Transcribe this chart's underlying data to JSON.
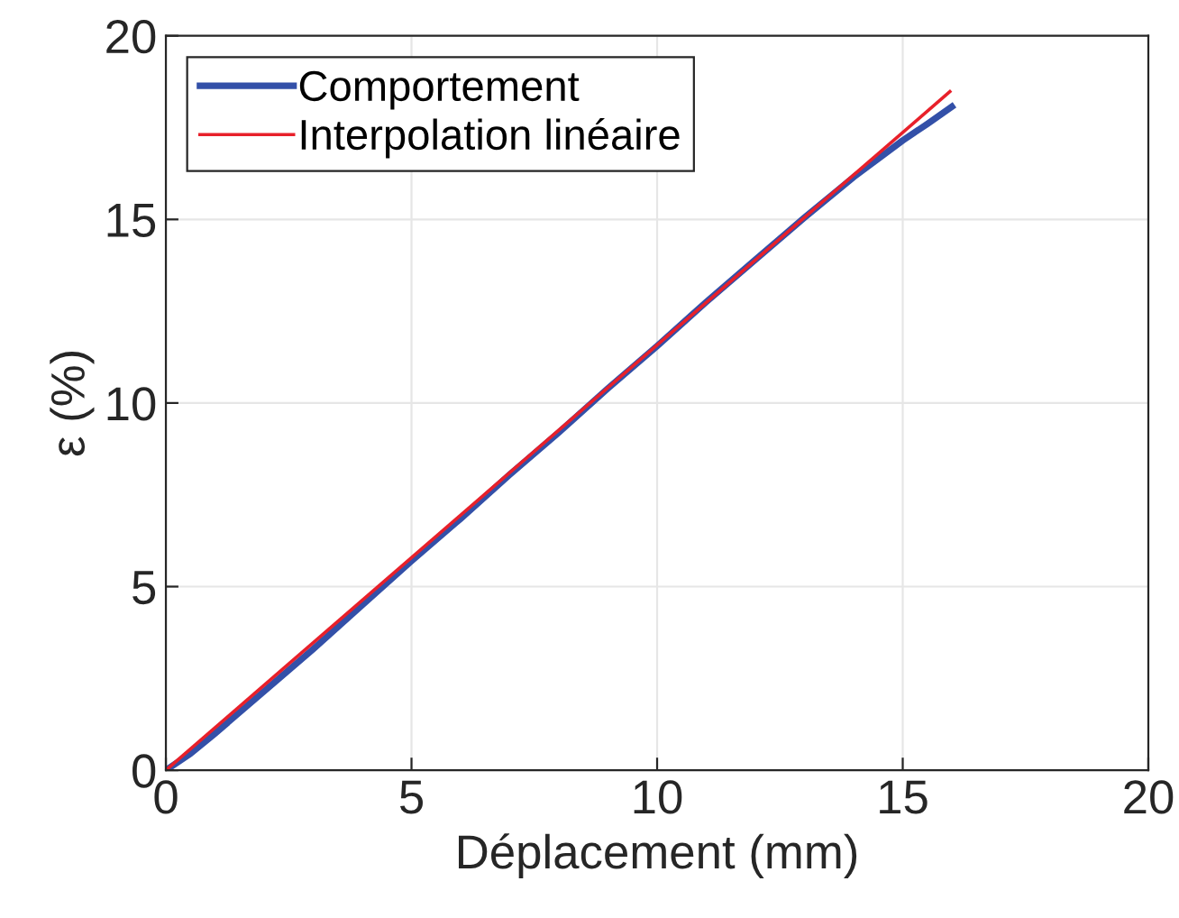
{
  "chart_data": {
    "type": "line",
    "xlabel": "Déplacement (mm)",
    "ylabel": "ε (%)",
    "xlim": [
      0,
      20
    ],
    "xticks": [
      0,
      5,
      10,
      15,
      20
    ],
    "ylim": [
      0,
      20
    ],
    "yticks": [
      0,
      5,
      10,
      15,
      20
    ],
    "grid": true,
    "legend": "top left",
    "series": [
      {
        "name": "Comportement",
        "color": "#3350a8",
        "x": [
          0,
          0.5,
          1,
          2,
          3,
          4,
          5,
          6,
          7,
          8,
          9,
          10,
          11,
          12,
          13,
          14,
          14.5,
          15,
          15.5,
          16
        ],
        "values": [
          0,
          0.45,
          1.0,
          2.15,
          3.3,
          4.5,
          5.7,
          6.85,
          8.05,
          9.2,
          10.4,
          11.55,
          12.75,
          13.9,
          15.05,
          16.15,
          16.65,
          17.15,
          17.6,
          18.07
        ]
      },
      {
        "name": "Interpolation linéaire",
        "color": "#e8202a",
        "x": [
          0,
          15.96
        ],
        "values": [
          0,
          18.48
        ]
      }
    ]
  }
}
